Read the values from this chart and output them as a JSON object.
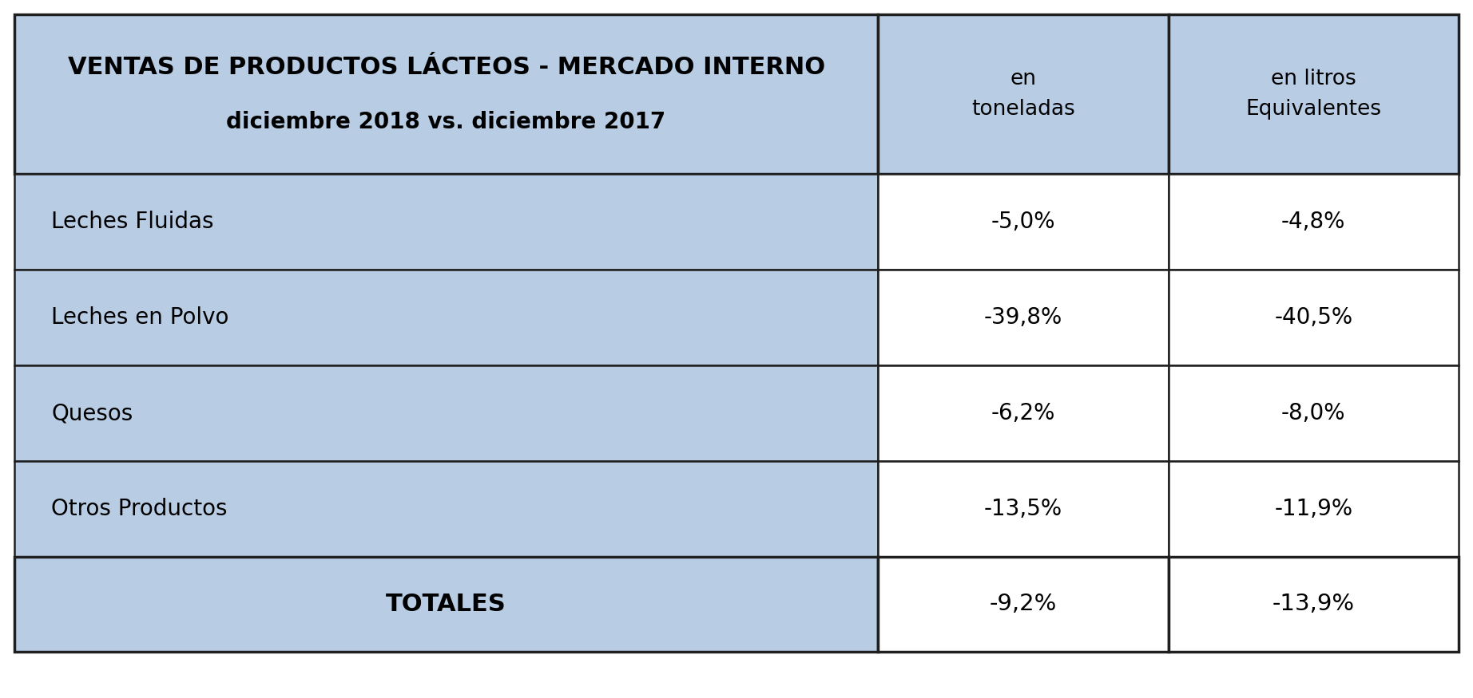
{
  "title_line1": "VENTAS DE PRODUCTOS LÁCTEOS - MERCADO INTERNO",
  "title_line2": "diciembre 2018 vs. diciembre 2017",
  "col_headers_1": "en\ntoneladas",
  "col_headers_2": "en litros\nEquivalentes",
  "rows": [
    {
      "label": "Leches Fluidas",
      "toneladas": "-5,0%",
      "litros": "-4,8%"
    },
    {
      "label": "Leches en Polvo",
      "toneladas": "-39,8%",
      "litros": "-40,5%"
    },
    {
      "label": "Quesos",
      "toneladas": "-6,2%",
      "litros": "-8,0%"
    },
    {
      "label": "Otros Productos",
      "toneladas": "-13,5%",
      "litros": "-11,9%"
    }
  ],
  "total_label": "TOTALES",
  "total_toneladas": "-9,2%",
  "total_litros": "-13,9%",
  "header_bg": "#b8cce4",
  "data_col_bg": "#ffffff",
  "label_col_bg": "#b8cce4",
  "total_bg": "#b8cce4",
  "border_color": "#1f1f1f",
  "text_color": "#000000",
  "outer_bg": "#ffffff",
  "fig_width": 18.44,
  "fig_height": 8.75,
  "dpi": 100
}
